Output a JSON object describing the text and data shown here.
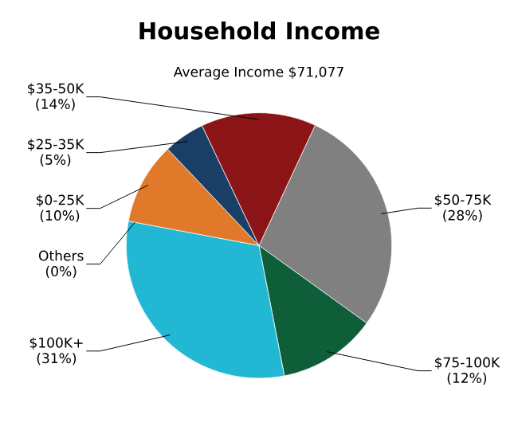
{
  "chart_data": {
    "type": "pie",
    "title": "Household Income",
    "subtitle": "Average Income  $71,077",
    "categories": [
      "$50-75K",
      "$75-100K",
      "$100K+",
      "Others",
      "$0-25K",
      "$25-35K",
      "$35-50K"
    ],
    "values": [
      28,
      12,
      31,
      0,
      10,
      5,
      14
    ],
    "value_labels": [
      "(28%)",
      "(12%)",
      "(31%)",
      "(0%)",
      "(10%)",
      "(5%)",
      "(14%)"
    ],
    "colors": [
      "#808080",
      "#0f5e3a",
      "#22b8d4",
      "#b0b0b0",
      "#e07a2a",
      "#1a3f66",
      "#8b1416"
    ]
  }
}
